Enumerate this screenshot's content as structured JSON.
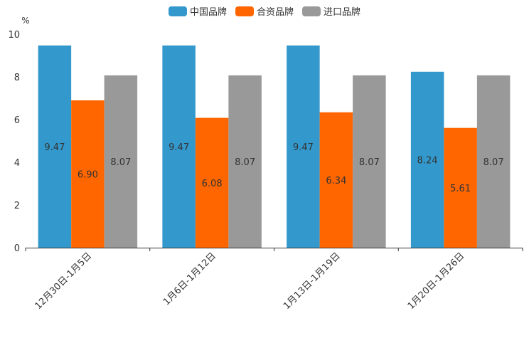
{
  "chart_data": {
    "type": "bar",
    "ylabel": "%",
    "ylim": [
      0,
      10
    ],
    "yticks": [
      "0",
      "2",
      "4",
      "6",
      "8",
      "10"
    ],
    "categories": [
      "12月30日-1月5日",
      "1月6日-1月12日",
      "1月13日-1月19日",
      "1月20日-1月26日"
    ],
    "series": [
      {
        "name": "中国品牌",
        "color": "#3398cc",
        "values": [
          9.47,
          9.47,
          9.47,
          8.24
        ],
        "labels": [
          "9.47",
          "9.47",
          "9.47",
          "8.24"
        ]
      },
      {
        "name": "合资品牌",
        "color": "#ff6600",
        "values": [
          6.9,
          6.08,
          6.34,
          5.61
        ],
        "labels": [
          "6.90",
          "6.08",
          "6.34",
          "5.61"
        ]
      },
      {
        "name": "进口品牌",
        "color": "#999999",
        "values": [
          8.07,
          8.07,
          8.07,
          8.07
        ],
        "labels": [
          "8.07",
          "8.07",
          "8.07",
          "8.07"
        ]
      }
    ],
    "legend": "top-center"
  }
}
